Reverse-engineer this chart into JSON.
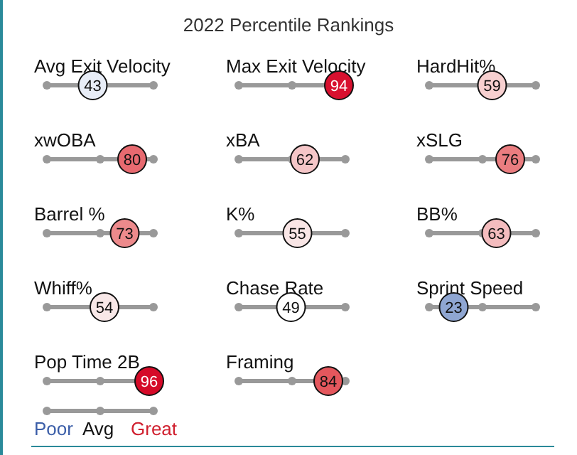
{
  "chart_data": {
    "type": "other",
    "title": "2022 Percentile Rankings",
    "categories": [
      "Avg Exit Velocity",
      "Max Exit Velocity",
      "HardHit%",
      "xwOBA",
      "xBA",
      "xSLG",
      "Barrel %",
      "K%",
      "BB%",
      "Whiff%",
      "Chase Rate",
      "Sprint Speed",
      "Pop Time 2B",
      "Framing"
    ],
    "values": [
      43,
      94,
      59,
      80,
      62,
      76,
      73,
      55,
      63,
      54,
      49,
      23,
      96,
      84
    ],
    "colors": [
      "#e8edf7",
      "#d8102f",
      "#f7d0d0",
      "#e76a70",
      "#f5c6c8",
      "#ea7d80",
      "#ed8a8c",
      "#f9e6e6",
      "#f4bcbe",
      "#f8e8e8",
      "#ffffff",
      "#8fa6d2",
      "#d50a28",
      "#e4575d"
    ],
    "data_labels": true,
    "annotations": [
      "Poor",
      "Avg",
      "Great"
    ]
  }
}
